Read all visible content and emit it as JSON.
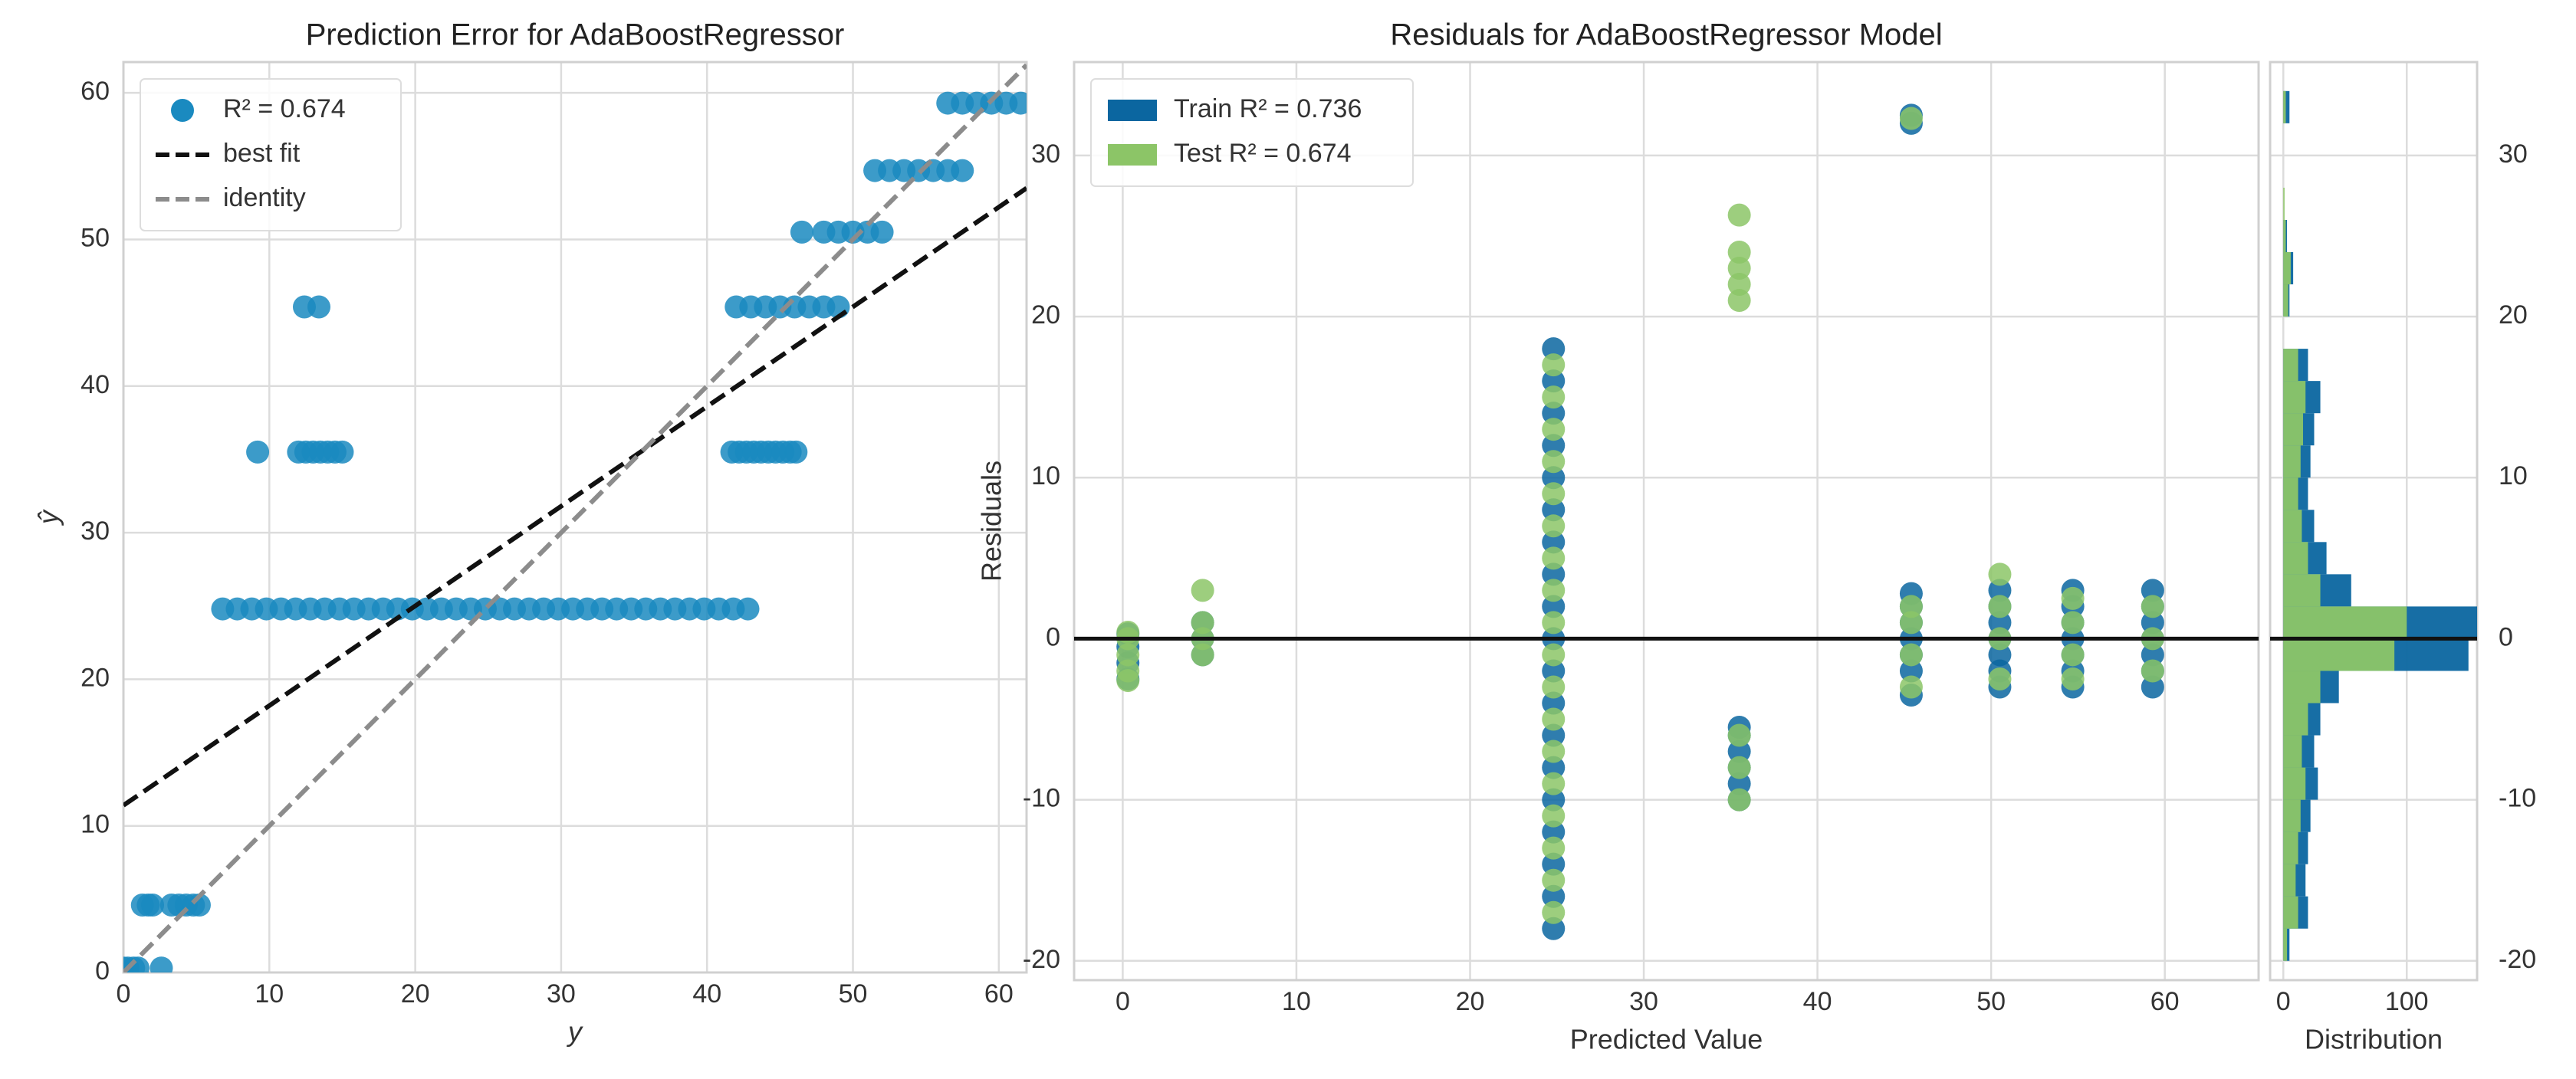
{
  "chart_data": [
    {
      "type": "scatter",
      "title": "Prediction Error for AdaBoostRegressor",
      "x_label": "y",
      "y_label": "ŷ",
      "xlim": [
        0,
        61.9
      ],
      "ylim": [
        0,
        62.1
      ],
      "xticks": [
        0,
        10,
        20,
        30,
        40,
        50,
        60
      ],
      "yticks": [
        0,
        10,
        20,
        30,
        40,
        50,
        60
      ],
      "grid": true,
      "legend": "upper left",
      "series": [
        {
          "name": "R² = 0.674",
          "type": "scatter",
          "color": "#1a8ac0",
          "x": [
            0,
            0.3,
            0.7,
            1,
            2.6,
            1.3,
            1.7,
            2,
            3.3,
            3.8,
            4.3,
            4.8,
            5.2,
            6.8,
            7.8,
            8.8,
            9.8,
            10.8,
            11.8,
            12.8,
            13.8,
            14.8,
            15.8,
            16.8,
            17.8,
            18.8,
            19.8,
            20.8,
            21.8,
            22.8,
            23.8,
            24.8,
            25.8,
            26.8,
            27.8,
            28.8,
            29.8,
            30.8,
            31.8,
            32.8,
            33.8,
            34.8,
            35.8,
            36.8,
            37.8,
            38.8,
            39.8,
            40.8,
            41.8,
            42.8,
            9.2,
            12,
            12.5,
            13,
            13.5,
            14,
            14.5,
            15,
            41.7,
            42.2,
            42.7,
            43.2,
            43.7,
            44.2,
            44.7,
            45.2,
            45.7,
            46.1,
            12.4,
            13.4,
            42,
            43,
            44,
            45,
            46,
            47,
            48,
            49,
            46.5,
            48,
            49,
            50,
            51,
            52,
            51.5,
            52.5,
            53.5,
            54.5,
            55.5,
            56.5,
            57.5,
            56.5,
            57.5,
            58.5,
            59.5,
            60.5,
            61.5
          ],
          "values": [
            0.3,
            0.3,
            0.3,
            0.3,
            0.3,
            4.6,
            4.6,
            4.6,
            4.6,
            4.6,
            4.6,
            4.6,
            4.6,
            24.8,
            24.8,
            24.8,
            24.8,
            24.8,
            24.8,
            24.8,
            24.8,
            24.8,
            24.8,
            24.8,
            24.8,
            24.8,
            24.8,
            24.8,
            24.8,
            24.8,
            24.8,
            24.8,
            24.8,
            24.8,
            24.8,
            24.8,
            24.8,
            24.8,
            24.8,
            24.8,
            24.8,
            24.8,
            24.8,
            24.8,
            24.8,
            24.8,
            24.8,
            24.8,
            24.8,
            24.8,
            35.5,
            35.5,
            35.5,
            35.5,
            35.5,
            35.5,
            35.5,
            35.5,
            35.5,
            35.5,
            35.5,
            35.5,
            35.5,
            35.5,
            35.5,
            35.5,
            35.5,
            35.5,
            45.4,
            45.4,
            45.4,
            45.4,
            45.4,
            45.4,
            45.4,
            45.4,
            45.4,
            45.4,
            50.5,
            50.5,
            50.5,
            50.5,
            50.5,
            50.5,
            54.7,
            54.7,
            54.7,
            54.7,
            54.7,
            54.7,
            54.7,
            59.3,
            59.3,
            59.3,
            59.3,
            59.3,
            59.3
          ]
        },
        {
          "name": "best fit",
          "type": "line",
          "color": "#111111",
          "x": [
            0,
            61.9
          ],
          "values": [
            11.4,
            53.5
          ]
        },
        {
          "name": "identity",
          "type": "line",
          "color": "#8c8c8c",
          "x": [
            0,
            61.9
          ],
          "values": [
            0,
            61.9
          ]
        }
      ]
    },
    {
      "type": "scatter",
      "title": "Residuals for AdaBoostRegressor Model",
      "x_label": "Predicted Value",
      "y_label": "Residuals",
      "xlim": [
        -2.8,
        65.4
      ],
      "ylim": [
        -21.2,
        35.8
      ],
      "xticks": [
        0,
        10,
        20,
        30,
        40,
        50,
        60
      ],
      "yticks": [
        -20,
        -10,
        0,
        10,
        20,
        30
      ],
      "grid": true,
      "legend": "upper left",
      "legend_marker": "patch",
      "hline": 0,
      "series": [
        {
          "name": "Train R² = 0.736",
          "type": "scatter",
          "color": "#0b66a0",
          "x": [
            0.3,
            0.3,
            0.3,
            0.3,
            4.6,
            4.6,
            4.6,
            24.8,
            24.8,
            24.8,
            24.8,
            24.8,
            24.8,
            24.8,
            24.8,
            24.8,
            24.8,
            24.8,
            24.8,
            24.8,
            24.8,
            24.8,
            24.8,
            24.8,
            24.8,
            24.8,
            35.5,
            35.5,
            35.5,
            35.5,
            35.5,
            35.5,
            45.4,
            45.4,
            45.4,
            45.4,
            45.4,
            45.4,
            45.4,
            45.4,
            45.4,
            50.5,
            50.5,
            50.5,
            50.5,
            50.5,
            50.5,
            50.5,
            54.7,
            54.7,
            54.7,
            54.7,
            54.7,
            54.7,
            54.7,
            59.3,
            59.3,
            59.3,
            59.3,
            59.3,
            59.3,
            59.3
          ],
          "values": [
            -2.5,
            -1.5,
            -0.5,
            0.3,
            -1,
            0,
            1,
            -18,
            -16,
            -14,
            -12,
            -10,
            -8,
            -6,
            -4,
            -2,
            0,
            2,
            4,
            6,
            8,
            10,
            12,
            14,
            16,
            18,
            -10,
            -9,
            -8,
            -7,
            -6,
            -5.5,
            32,
            32.5,
            -3.5,
            -2,
            -1,
            0,
            1,
            2,
            2.8,
            -3,
            -2,
            -1,
            0,
            1,
            2,
            3,
            -3,
            -2,
            -1,
            0,
            1,
            2,
            3,
            -3,
            -2,
            -1,
            0,
            1,
            2,
            3
          ]
        },
        {
          "name": "Test R² = 0.674",
          "type": "scatter",
          "color": "#8cc567",
          "x": [
            0.3,
            0.3,
            0.3,
            0.3,
            0.3,
            4.6,
            4.6,
            4.6,
            4.6,
            24.8,
            24.8,
            24.8,
            24.8,
            24.8,
            24.8,
            24.8,
            24.8,
            24.8,
            24.8,
            24.8,
            24.8,
            24.8,
            24.8,
            24.8,
            24.8,
            24.8,
            24.8,
            35.5,
            35.5,
            35.5,
            35.5,
            35.5,
            35.5,
            35.5,
            35.5,
            45.4,
            45.4,
            45.4,
            45.4,
            45.4,
            50.5,
            50.5,
            50.5,
            50.5,
            54.7,
            54.7,
            54.7,
            54.7,
            59.3,
            59.3,
            59.3
          ],
          "values": [
            -2.6,
            -2,
            -1,
            0,
            0.4,
            -1,
            0,
            1,
            3,
            -17,
            -15,
            -13,
            -11,
            -9,
            -7,
            -5,
            -3,
            -1,
            1,
            3,
            5,
            7,
            9,
            11,
            13,
            15,
            17,
            21,
            22,
            23,
            24,
            26.3,
            -10,
            -8,
            -6,
            32.3,
            -3,
            -1,
            1,
            2,
            -2.5,
            0,
            2,
            4,
            -2.5,
            -1,
            1,
            2.5,
            -2,
            0,
            2
          ]
        }
      ]
    },
    {
      "type": "histogram",
      "orientation": "horizontal",
      "x_label": "Distribution",
      "hline": 0,
      "xlim": [
        -10.7,
        157
      ],
      "ylim": [
        -21.2,
        35.8
      ],
      "xticks": [
        0,
        100
      ],
      "yticks": [
        -20,
        -10,
        0,
        10,
        20,
        30
      ],
      "grid": true,
      "bins": [
        -20,
        -18,
        -16,
        -14,
        -12,
        -10,
        -8,
        -6,
        -4,
        -2,
        0,
        2,
        4,
        6,
        8,
        10,
        12,
        14,
        16,
        18,
        20,
        22,
        24,
        26,
        28,
        30,
        32,
        34
      ],
      "series": [
        {
          "name": "Train",
          "color": "#0b66a0",
          "values": [
            5,
            20,
            18,
            20,
            22,
            28,
            25,
            30,
            45,
            150,
            165,
            55,
            35,
            25,
            20,
            22,
            25,
            30,
            20,
            0,
            5,
            8,
            3,
            0,
            0,
            0,
            5
          ]
        },
        {
          "name": "Test",
          "color": "#8cc567",
          "values": [
            3,
            12,
            10,
            12,
            14,
            18,
            15,
            20,
            30,
            90,
            100,
            30,
            20,
            15,
            12,
            14,
            16,
            18,
            12,
            0,
            4,
            6,
            2,
            1,
            0,
            0,
            2
          ]
        }
      ]
    }
  ]
}
